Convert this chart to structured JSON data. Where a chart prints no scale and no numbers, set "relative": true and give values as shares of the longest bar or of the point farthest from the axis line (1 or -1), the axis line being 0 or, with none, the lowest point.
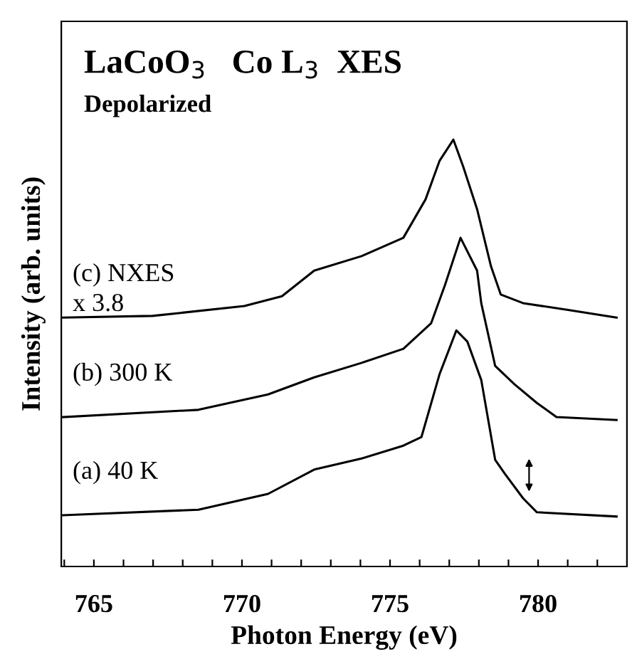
{
  "chart_data": {
    "type": "line",
    "title": "LaCoO$_{3}$   Co L$_{3}$  XES",
    "subtitle": "Depolarized",
    "xlabel": "Photon Energy (eV)",
    "ylabel": "Intensity (arb. units)",
    "relative": true,
    "xlim": [
      763.9,
      783
    ],
    "xticks": [
      {
        "value": 764,
        "label": null
      },
      765,
      {
        "value": 766,
        "label": null
      },
      {
        "value": 767,
        "label": null
      },
      {
        "value": 768,
        "label": null
      },
      {
        "value": 769,
        "label": null
      },
      770,
      {
        "value": 771,
        "label": null
      },
      {
        "value": 772,
        "label": null
      },
      {
        "value": 773,
        "label": null
      },
      {
        "value": 774,
        "label": null
      },
      775,
      {
        "value": 776,
        "label": null
      },
      {
        "value": 777,
        "label": null
      },
      {
        "value": 778,
        "label": null
      },
      {
        "value": 779,
        "label": null
      },
      780,
      {
        "value": 781,
        "label": null
      },
      {
        "value": 782,
        "label": null
      }
    ],
    "annotations": [
      "x 3.8"
    ],
    "legend": false,
    "grid": false,
    "marker": "none",
    "line_style": "solid",
    "series": [
      {
        "name": "(c) NXES",
        "color": "#000000",
        "x": [
          763.96,
          766.98,
          770.08,
          771.35,
          772.44,
          774.04,
          775.45,
          776.2,
          776.67,
          777.14,
          777.47,
          777.94,
          778.41,
          778.74,
          779.49,
          781.09,
          782.65
        ],
        "values": [
          0.583,
          0.587,
          0.61,
          0.633,
          0.693,
          0.727,
          0.77,
          0.86,
          0.95,
          1.0,
          0.937,
          0.837,
          0.703,
          0.637,
          0.617,
          0.6,
          0.583
        ]
      },
      {
        "name": "(b) 300 K",
        "color": "#000000",
        "x": [
          763.96,
          768.53,
          770.88,
          772.44,
          774.04,
          775.45,
          776.39,
          776.86,
          777.38,
          777.94,
          778.08,
          778.55,
          779.2,
          779.96,
          780.62,
          782.65
        ],
        "values": [
          0.35,
          0.367,
          0.403,
          0.443,
          0.477,
          0.51,
          0.57,
          0.66,
          0.77,
          0.693,
          0.617,
          0.47,
          0.427,
          0.383,
          0.35,
          0.343
        ]
      },
      {
        "name": "(a) 40 K",
        "color": "#000000",
        "x": [
          763.96,
          768.53,
          770.88,
          772.44,
          774.04,
          775.45,
          776.06,
          776.67,
          777.24,
          777.61,
          778.08,
          778.55,
          778.88,
          779.49,
          779.96,
          782.65
        ],
        "values": [
          0.12,
          0.133,
          0.17,
          0.227,
          0.253,
          0.283,
          0.303,
          0.45,
          0.553,
          0.527,
          0.437,
          0.25,
          0.217,
          0.16,
          0.127,
          0.117
        ]
      }
    ]
  }
}
